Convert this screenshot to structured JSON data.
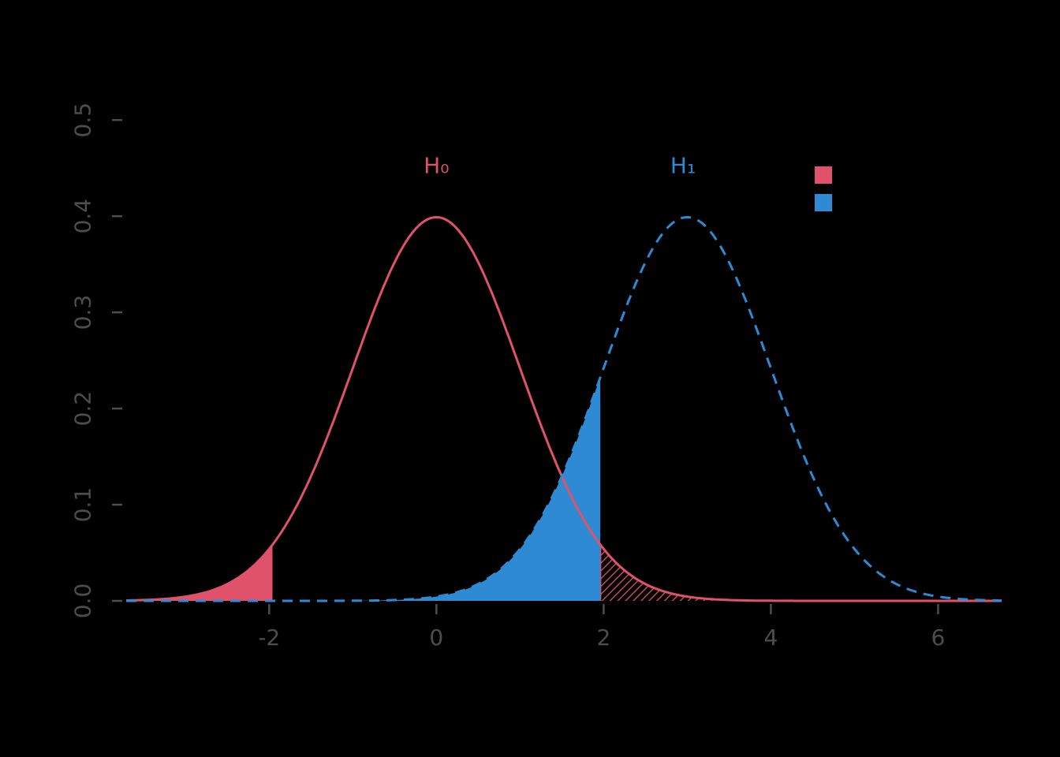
{
  "colors": {
    "background": "#000000",
    "axis_text": "#4d4d4d",
    "h0_color": "#e0526a",
    "h1_color": "#2e8ad2"
  },
  "chart_data": {
    "type": "line",
    "title": "",
    "xlabel": "",
    "ylabel": "",
    "x_range": [
      -3.71,
      6.76
    ],
    "y_range": [
      0,
      0.51
    ],
    "x_ticks": [
      -2,
      0,
      2,
      4,
      6
    ],
    "y_ticks": [
      0.0,
      0.1,
      0.2,
      0.3,
      0.4,
      0.5
    ],
    "grid": false,
    "series": [
      {
        "name": "H0",
        "label": "H₀",
        "distribution": "normal",
        "mean": 0,
        "sd": 1,
        "peak": 0.3989,
        "line_style": "solid",
        "color": "#e0526a"
      },
      {
        "name": "H1",
        "label": "H₁",
        "distribution": "normal",
        "mean": 3,
        "sd": 1,
        "peak": 0.3989,
        "line_style": "dashed",
        "color": "#2e8ad2"
      }
    ],
    "critical_values": [
      -1.96,
      1.96
    ],
    "regions": [
      {
        "name": "alpha-left-region",
        "under": "H0",
        "from": -3.71,
        "to": -1.96,
        "fill": "solid",
        "color": "#e0526a"
      },
      {
        "name": "alpha-right-region",
        "under": "H0",
        "from": 1.96,
        "to": 6.76,
        "fill": "hatched",
        "color": "#e0526a"
      },
      {
        "name": "beta-region",
        "under": "H1",
        "from": -3.71,
        "to": 1.96,
        "fill": "solid",
        "color": "#2e8ad2"
      }
    ],
    "annotations": [
      {
        "name": "h0-label",
        "text": "H₀",
        "x": 0.0,
        "y": 0.445,
        "color": "#e0526a"
      },
      {
        "name": "h1-label",
        "text": "H₁",
        "x": 2.95,
        "y": 0.445,
        "color": "#2e8ad2"
      }
    ],
    "legend": {
      "position": "top-right",
      "entries": [
        {
          "name": "legend-swatch-h0",
          "swatch_color": "#e0526a"
        },
        {
          "name": "legend-swatch-h1",
          "swatch_color": "#2e8ad2"
        }
      ]
    }
  }
}
